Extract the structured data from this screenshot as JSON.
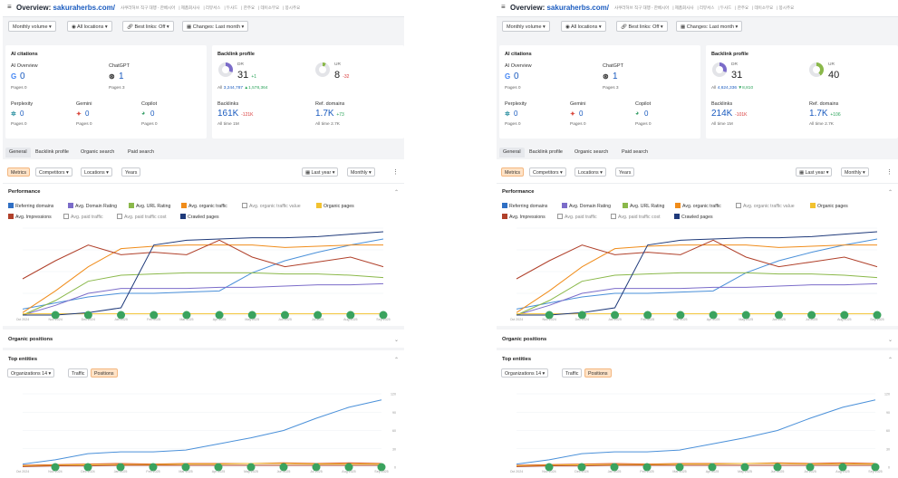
{
  "header": {
    "title_prefix": "Overview:",
    "domain": "sakuraherbs.com/",
    "breadcrumbs": [
      "사쿠라허브 직구 대행 - 한베시아",
      "제품회사사",
      "리뷰서스",
      "두사드",
      "한주요",
      "데이소무요",
      "몽시주요"
    ]
  },
  "filters": {
    "volume": "Monthly volume ▾",
    "locations": "All locations ▾",
    "best_links": "Best links: Off ▾",
    "changes": "Changes: Last month ▾"
  },
  "ai_citations": {
    "title": "AI citations",
    "items": [
      {
        "name": "AI Overview",
        "value": "0",
        "pages": "Pages 0"
      },
      {
        "name": "ChatGPT",
        "value": "1",
        "pages": "Pages 3"
      },
      {
        "name": "Perplexity",
        "value": "0",
        "pages": "Pages 0"
      },
      {
        "name": "Gemini",
        "value": "0",
        "pages": "Pages 0"
      },
      {
        "name": "Copilot",
        "value": "0",
        "pages": "Pages 0"
      }
    ]
  },
  "backlink_profile": {
    "title": "Backlink profile",
    "dr_label": "DR",
    "ur_label": "UR",
    "backlinks_label": "Backlinks",
    "refdomains_label": "Ref. domains",
    "alltime_label_a": "All time",
    "alltime_label_b": "All time"
  },
  "panels": [
    {
      "dr": "31",
      "dr_delta": "+1",
      "dr_all": "All",
      "dr_all_value": "3,244,787",
      "dr_all_delta": "▲1,578,364",
      "ur": "8",
      "ur_delta": "-32",
      "backlinks": "161K",
      "backlinks_delta": "-121K",
      "backlinks_alltime": "1M",
      "refdomains": "1.7K",
      "refdomains_delta": "+73",
      "refdomains_alltime": "2.7K"
    },
    {
      "dr": "31",
      "dr_delta": "",
      "dr_all": "All",
      "dr_all_value": "4,624,336",
      "dr_all_delta": "▼8,810",
      "ur": "40",
      "ur_delta": "",
      "backlinks": "214K",
      "backlinks_delta": "-101K",
      "backlinks_alltime": "1M",
      "refdomains": "1.7K",
      "refdomains_delta": "+106",
      "refdomains_alltime": "2.7K"
    }
  ],
  "tabs": [
    "General",
    "Backlink profile",
    "Organic search",
    "Paid search"
  ],
  "toolbar": {
    "metrics": "Metrics",
    "competitors": "Competitors ▾",
    "locations": "Locations ▾",
    "years": "Years",
    "period": "Last year ▾",
    "granularity": "Monthly ▾",
    "more": "⋮"
  },
  "performance": {
    "title": "Performance",
    "checks": [
      {
        "label": "Referring domains",
        "color": "#2f6fc4",
        "on": true
      },
      {
        "label": "Avg. Domain Rating",
        "color": "#7b6cc9",
        "on": true
      },
      {
        "label": "Avg. URL Rating",
        "color": "#8ab84a",
        "on": true
      },
      {
        "label": "Avg. organic traffic",
        "color": "#f08c1a",
        "on": true
      },
      {
        "label": "Avg. organic traffic value",
        "color": "#999999",
        "on": false
      },
      {
        "label": "Organic pages",
        "color": "#f2c230",
        "on": true
      },
      {
        "label": "Avg. Impressions",
        "color": "#b0402a",
        "on": true
      },
      {
        "label": "Avg. paid traffic",
        "color": "#999999",
        "on": false
      },
      {
        "label": "Avg. paid traffic cost",
        "color": "#999999",
        "on": false
      },
      {
        "label": "Crawled pages",
        "color": "#1f3a7a",
        "on": true
      }
    ]
  },
  "organic_positions": {
    "title": "Organic positions"
  },
  "top_entities": {
    "title": "Top entities",
    "orgs": "Organizations 14 ▾",
    "traffic": "Traffic",
    "positions": "Positions"
  },
  "chart_data": [
    {
      "type": "line",
      "title": "Performance",
      "x": [
        "Oct 2024",
        "Nov 2024",
        "Dec 2024",
        "Jan 2025",
        "Feb 2025",
        "Mar 2025",
        "Apr 2025",
        "May 2025",
        "Jun 2025",
        "Jul 2025",
        "Aug 2025",
        "Sep 2025"
      ],
      "normalized": true,
      "series": [
        {
          "name": "Referring domains",
          "color": "#4a90d9",
          "values": [
            0.05,
            0.1,
            0.15,
            0.18,
            0.18,
            0.19,
            0.2,
            0.35,
            0.45,
            0.52,
            0.58,
            0.63
          ]
        },
        {
          "name": "Avg. Domain Rating",
          "color": "#7b6cc9",
          "values": [
            0.0,
            0.08,
            0.18,
            0.22,
            0.22,
            0.22,
            0.23,
            0.23,
            0.24,
            0.25,
            0.25,
            0.26
          ]
        },
        {
          "name": "Avg. URL Rating",
          "color": "#8ab84a",
          "values": [
            0.0,
            0.12,
            0.28,
            0.33,
            0.34,
            0.35,
            0.35,
            0.35,
            0.34,
            0.34,
            0.33,
            0.31
          ]
        },
        {
          "name": "Avg. organic traffic",
          "color": "#f08c1a",
          "values": [
            0.02,
            0.2,
            0.4,
            0.55,
            0.57,
            0.58,
            0.58,
            0.58,
            0.56,
            0.57,
            0.58,
            0.58
          ]
        },
        {
          "name": "Organic pages",
          "color": "#f2c230",
          "values": [
            0.01,
            0.01,
            0.01,
            0.01,
            0.01,
            0.01,
            0.01,
            0.01,
            0.01,
            0.01,
            0.01,
            0.01
          ]
        },
        {
          "name": "Avg. Impressions",
          "color": "#b0402a",
          "values": [
            0.3,
            0.45,
            0.58,
            0.5,
            0.52,
            0.5,
            0.62,
            0.48,
            0.4,
            0.44,
            0.48,
            0.4
          ]
        },
        {
          "name": "Crawled pages",
          "color": "#1f3a7a",
          "values": [
            0.0,
            0.0,
            0.02,
            0.06,
            0.58,
            0.62,
            0.63,
            0.64,
            0.64,
            0.65,
            0.67,
            0.69
          ]
        }
      ]
    },
    {
      "type": "line",
      "title": "Top entities",
      "x": [
        "Oct 2024",
        "Nov 2024",
        "Dec 2024",
        "Jan 2025",
        "Feb 2025",
        "Mar 2025",
        "Apr 2025",
        "May 2025",
        "Jun 2025",
        "Jul 2025",
        "Aug 2025",
        "Sep 2025"
      ],
      "yticks": [
        "120",
        "90",
        "60",
        "30",
        "0"
      ],
      "ylim": [
        0,
        120
      ],
      "series": [
        {
          "name": "entity-1",
          "color": "#4a90d9",
          "values": [
            5,
            12,
            22,
            25,
            25,
            28,
            38,
            48,
            60,
            80,
            98,
            110
          ]
        },
        {
          "name": "entity-2",
          "color": "#d9541b",
          "values": [
            3,
            4,
            5,
            6,
            5,
            6,
            6,
            6,
            7,
            6,
            7,
            6
          ]
        },
        {
          "name": "entity-3",
          "color": "#f2c230",
          "values": [
            2,
            3,
            4,
            4,
            4,
            5,
            5,
            6,
            6,
            5,
            5,
            5
          ]
        },
        {
          "name": "entity-4",
          "color": "#b0402a",
          "values": [
            1,
            2,
            2,
            3,
            3,
            3,
            3,
            3,
            3,
            3,
            3,
            3
          ]
        }
      ]
    }
  ]
}
